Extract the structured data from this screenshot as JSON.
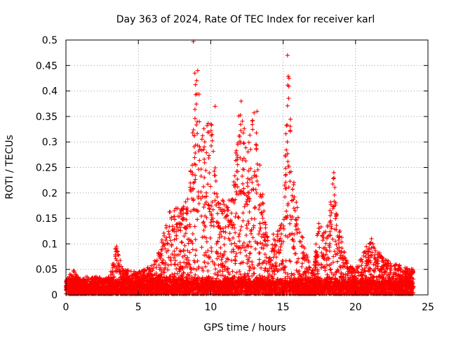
{
  "chart_data": {
    "type": "scatter",
    "title": "Day 363 of 2024, Rate Of TEC Index for receiver karl",
    "xlabel": "GPS time / hours",
    "ylabel": "ROTI / TECUs",
    "xlim": [
      0,
      25
    ],
    "ylim": [
      0,
      0.5
    ],
    "x_ticks": [
      0,
      5,
      10,
      15,
      20,
      25
    ],
    "x_tick_labels": [
      "0",
      "5",
      "10",
      "15",
      "20",
      "25"
    ],
    "y_ticks": [
      0,
      0.05,
      0.1,
      0.15,
      0.2,
      0.25,
      0.3,
      0.35,
      0.4,
      0.45,
      0.5
    ],
    "y_tick_labels": [
      "0",
      "0.05",
      "0.1",
      "0.15",
      "0.2",
      "0.25",
      "0.3",
      "0.35",
      "0.4",
      "0.45",
      "0.5"
    ],
    "grid": true,
    "marker": "+",
    "color": "#ff0000",
    "envelope_note": "approximate upper envelope of the dense point cloud (hour, ROTI)",
    "envelope": [
      [
        0,
        0.03
      ],
      [
        0.5,
        0.05
      ],
      [
        1,
        0.03
      ],
      [
        2,
        0.035
      ],
      [
        3,
        0.035
      ],
      [
        3.5,
        0.095
      ],
      [
        4,
        0.05
      ],
      [
        5,
        0.045
      ],
      [
        6,
        0.06
      ],
      [
        6.5,
        0.09
      ],
      [
        7,
        0.16
      ],
      [
        7.5,
        0.17
      ],
      [
        8,
        0.17
      ],
      [
        8.5,
        0.2
      ],
      [
        9,
        0.44
      ],
      [
        9.5,
        0.33
      ],
      [
        10,
        0.36
      ],
      [
        10.5,
        0.2
      ],
      [
        11,
        0.18
      ],
      [
        11.5,
        0.2
      ],
      [
        12,
        0.38
      ],
      [
        12.5,
        0.3
      ],
      [
        13,
        0.36
      ],
      [
        13.5,
        0.25
      ],
      [
        14,
        0.1
      ],
      [
        15,
        0.16
      ],
      [
        15.3,
        0.47
      ],
      [
        15.8,
        0.2
      ],
      [
        16.5,
        0.09
      ],
      [
        17,
        0.05
      ],
      [
        17.5,
        0.15
      ],
      [
        18,
        0.12
      ],
      [
        18.5,
        0.24
      ],
      [
        19,
        0.12
      ],
      [
        19.5,
        0.06
      ],
      [
        20,
        0.05
      ],
      [
        21,
        0.11
      ],
      [
        22,
        0.07
      ],
      [
        23,
        0.06
      ],
      [
        24,
        0.05
      ]
    ],
    "highlights": [
      [
        8.8,
        0.497
      ],
      [
        15.3,
        0.47
      ],
      [
        9.1,
        0.44
      ],
      [
        8.9,
        0.435
      ],
      [
        15.4,
        0.425
      ],
      [
        12.1,
        0.38
      ],
      [
        10.3,
        0.37
      ],
      [
        13.2,
        0.36
      ],
      [
        18.5,
        0.24
      ],
      [
        7.6,
        0.17
      ],
      [
        8.1,
        0.16
      ],
      [
        3.5,
        0.095
      ],
      [
        3.4,
        0.09
      ],
      [
        21.1,
        0.11
      ],
      [
        22.8,
        0.06
      ]
    ]
  }
}
